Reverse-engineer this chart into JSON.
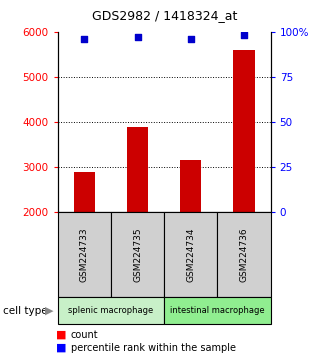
{
  "title": "GDS2982 / 1418324_at",
  "samples": [
    "GSM224733",
    "GSM224735",
    "GSM224734",
    "GSM224736"
  ],
  "counts": [
    2900,
    3900,
    3150,
    5600
  ],
  "percentile_ranks": [
    96,
    97,
    96,
    98
  ],
  "groups": [
    {
      "label": "splenic macrophage",
      "samples": [
        0,
        1
      ],
      "color": "#c8f0c8"
    },
    {
      "label": "intestinal macrophage",
      "samples": [
        2,
        3
      ],
      "color": "#90ee90"
    }
  ],
  "bar_color": "#cc0000",
  "dot_color": "#0000cc",
  "ylim_left": [
    2000,
    6000
  ],
  "ylim_right": [
    0,
    100
  ],
  "yticks_left": [
    2000,
    3000,
    4000,
    5000,
    6000
  ],
  "yticks_right": [
    0,
    25,
    50,
    75,
    100
  ],
  "ytick_labels_right": [
    "0",
    "25",
    "50",
    "75",
    "100%"
  ],
  "grid_values": [
    3000,
    4000,
    5000
  ],
  "sample_box_color": "#d0d0d0",
  "cell_type_label": "cell type"
}
